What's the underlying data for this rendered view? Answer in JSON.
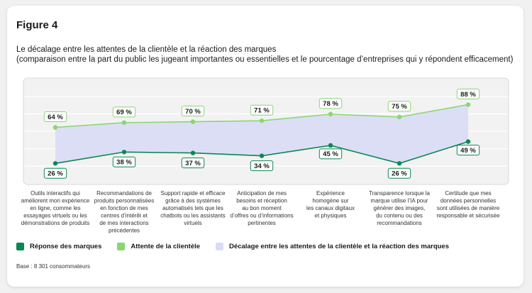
{
  "figure_title": "Figure 4",
  "subtitle_line1": "Le décalage entre les attentes de la clientèle et la réaction des marques",
  "subtitle_line2": "(comparaison entre la part du public les jugeant importantes ou essentielles et le pourcentage d’entreprises qui y répondent efficacement)",
  "legend": {
    "brand": "Réponse des marques",
    "customer": "Attente de la clientèle",
    "gap": "Décalage entre les attentes de la clientèle et la réaction des marques"
  },
  "colors": {
    "brand": "#0a8754",
    "customer": "#8ad672",
    "gap": "#dadcf6",
    "plot_bg": "#f2f2f2"
  },
  "base_note": "Base : 8 301 consommateurs",
  "chart_data": {
    "type": "line",
    "title": "Le décalage entre les attentes de la clientèle et la réaction des marques",
    "xlabel": "",
    "ylabel": "",
    "ylim": [
      0,
      100
    ],
    "unit_suffix": " %",
    "categories": [
      [
        "Outils interactifs qui",
        "améliorent mon expérience",
        "en ligne, comme les",
        "essayages virtuels ou les",
        "démonstrations de produits"
      ],
      [
        "Recommandations de",
        "produits personnalisées",
        "en fonction de mes",
        "centres d’intérêt et",
        "de mes interactions",
        "précédentes"
      ],
      [
        "Support rapide et efficace",
        "grâce à des systèmes",
        "automatisés tels que les",
        "chatbots ou les assistants",
        "virtuels"
      ],
      [
        "Anticipation de mes",
        "besoins et réception",
        "au bon moment",
        "d’offres ou d’informations",
        "pertinentes"
      ],
      [
        "Expérience",
        "homogène sur",
        "les canaux digitaux",
        "et physiques"
      ],
      [
        "Transparence lorsque la",
        "marque utilise l’IA pour",
        "générer des images,",
        "du contenu ou des",
        "recommandations"
      ],
      [
        "Certitude que mes",
        "données personnelles",
        "sont utilisées de manière",
        "responsable et sécurisée"
      ]
    ],
    "series": [
      {
        "name": "Attente de la clientèle",
        "values": [
          64,
          69,
          70,
          71,
          78,
          75,
          88
        ]
      },
      {
        "name": "Réponse des marques",
        "values": [
          26,
          38,
          37,
          34,
          45,
          26,
          49
        ]
      }
    ],
    "grid": true,
    "legend_position": "bottom-left"
  }
}
